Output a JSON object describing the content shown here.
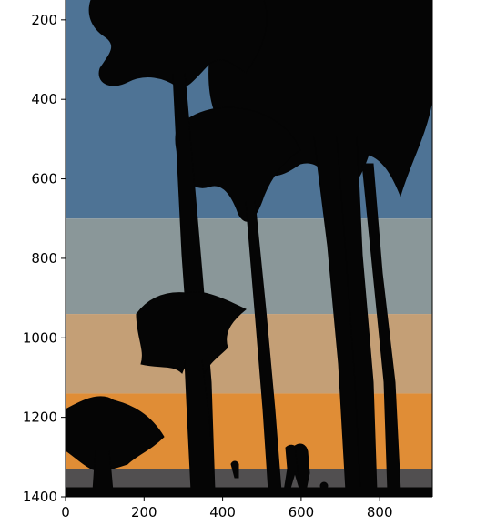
{
  "chart_data": {
    "type": "image",
    "title": "",
    "xlabel": "",
    "ylabel": "",
    "xlim": [
      0,
      934
    ],
    "ylim": [
      1400,
      150
    ],
    "y_inverted": true,
    "x_ticks": [
      0,
      200,
      400,
      600,
      800
    ],
    "y_ticks": [
      200,
      400,
      600,
      800,
      1000,
      1200,
      1400
    ],
    "x_tick_labels": [
      "0",
      "200",
      "400",
      "600",
      "800"
    ],
    "y_tick_labels": [
      "200",
      "400",
      "600",
      "800",
      "1000",
      "1200",
      "1400"
    ],
    "grid": false,
    "image_content": "posterized sunset sky with silhouetted palm trees and people",
    "color_bands": [
      {
        "color": "#4e7395",
        "y_from": 150,
        "y_to": 700
      },
      {
        "color": "#8a9799",
        "y_from": 700,
        "y_to": 940
      },
      {
        "color": "#c49f76",
        "y_from": 940,
        "y_to": 1140
      },
      {
        "color": "#e08d36",
        "y_from": 1140,
        "y_to": 1330
      },
      {
        "color": "#514f50",
        "y_from": 1330,
        "y_to": 1400
      }
    ],
    "silhouette_color": "#050505"
  }
}
